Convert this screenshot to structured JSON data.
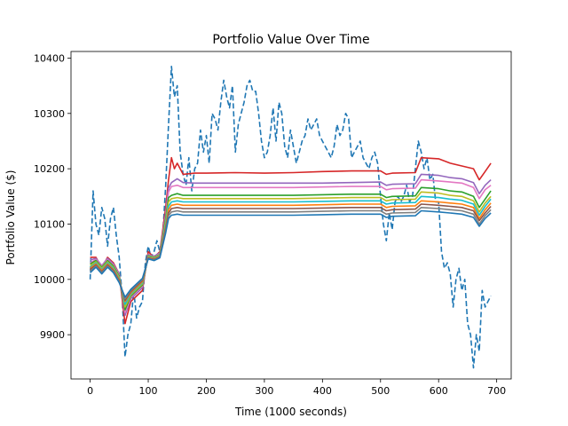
{
  "chart_data": {
    "type": "line",
    "title": "Portfolio Value Over Time",
    "xlabel": "Time (1000 seconds)",
    "ylabel": "Portfolio Value ($)",
    "xlim": [
      -33,
      725
    ],
    "ylim": [
      9820,
      10412
    ],
    "xticks": [
      0,
      100,
      200,
      300,
      400,
      500,
      600,
      700
    ],
    "yticks": [
      9900,
      10000,
      10100,
      10200,
      10300,
      10400
    ],
    "grid": false,
    "legend": "none",
    "series": [
      {
        "color": "#1f77b4",
        "dashed": true,
        "x": [
          0,
          5,
          10,
          15,
          20,
          25,
          30,
          35,
          40,
          45,
          50,
          55,
          60,
          65,
          70,
          75,
          80,
          85,
          90,
          95,
          100,
          105,
          110,
          115,
          120,
          125,
          130,
          135,
          140,
          145,
          150,
          155,
          160,
          165,
          170,
          175,
          180,
          185,
          190,
          195,
          200,
          205,
          210,
          215,
          220,
          225,
          230,
          235,
          240,
          245,
          250,
          255,
          260,
          265,
          270,
          275,
          280,
          285,
          290,
          295,
          300,
          305,
          310,
          315,
          320,
          325,
          330,
          335,
          340,
          345,
          350,
          355,
          360,
          365,
          370,
          375,
          380,
          385,
          390,
          395,
          400,
          405,
          410,
          415,
          420,
          425,
          430,
          435,
          440,
          445,
          450,
          455,
          460,
          465,
          470,
          475,
          480,
          485,
          490,
          495,
          500,
          505,
          510,
          515,
          520,
          525,
          530,
          535,
          540,
          545,
          550,
          555,
          560,
          565,
          570,
          575,
          580,
          585,
          590,
          595,
          600,
          605,
          610,
          615,
          620,
          625,
          630,
          635,
          640,
          645,
          650,
          655,
          660,
          665,
          670,
          675,
          680,
          685,
          690
        ],
        "values": [
          10000,
          10160,
          10100,
          10080,
          10130,
          10110,
          10060,
          10110,
          10130,
          10080,
          10040,
          9970,
          9860,
          9900,
          9920,
          9980,
          9930,
          9950,
          9960,
          10030,
          10060,
          10040,
          10050,
          10070,
          10050,
          10080,
          10170,
          10280,
          10385,
          10330,
          10350,
          10230,
          10190,
          10170,
          10220,
          10160,
          10200,
          10210,
          10270,
          10230,
          10260,
          10210,
          10300,
          10290,
          10270,
          10320,
          10360,
          10330,
          10310,
          10350,
          10230,
          10280,
          10300,
          10320,
          10350,
          10360,
          10340,
          10340,
          10300,
          10250,
          10220,
          10230,
          10260,
          10310,
          10250,
          10320,
          10300,
          10240,
          10220,
          10270,
          10240,
          10210,
          10230,
          10250,
          10260,
          10290,
          10270,
          10280,
          10290,
          10260,
          10250,
          10240,
          10230,
          10220,
          10240,
          10280,
          10260,
          10270,
          10300,
          10290,
          10220,
          10230,
          10240,
          10250,
          10220,
          10210,
          10200,
          10220,
          10230,
          10210,
          10150,
          10100,
          10070,
          10120,
          10090,
          10140,
          10150,
          10140,
          10150,
          10170,
          10140,
          10150,
          10200,
          10250,
          10230,
          10200,
          10220,
          10180,
          10190,
          10140,
          10140,
          10050,
          10020,
          10030,
          10010,
          9950,
          10000,
          10020,
          9980,
          10000,
          9920,
          9900,
          9840,
          9900,
          9870,
          9980,
          9950,
          9960,
          9970
        ]
      },
      {
        "color": "#d62728",
        "x": [
          0,
          10,
          20,
          30,
          40,
          50,
          60,
          70,
          80,
          90,
          100,
          110,
          120,
          130,
          135,
          140,
          145,
          150,
          160,
          180,
          200,
          250,
          300,
          350,
          400,
          450,
          500,
          510,
          520,
          560,
          570,
          600,
          620,
          640,
          660,
          670,
          680,
          690
        ],
        "values": [
          10040,
          10040,
          10020,
          10040,
          10030,
          10010,
          9920,
          9960,
          9970,
          9980,
          10050,
          10040,
          10050,
          10130,
          10180,
          10220,
          10200,
          10210,
          10190,
          10192,
          10192,
          10193,
          10192,
          10193,
          10195,
          10196,
          10196,
          10190,
          10192,
          10193,
          10220,
          10218,
          10210,
          10205,
          10200,
          10180,
          10195,
          10210
        ]
      },
      {
        "color": "#9467bd",
        "x": [
          0,
          10,
          20,
          30,
          40,
          50,
          60,
          70,
          80,
          90,
          100,
          110,
          120,
          130,
          135,
          140,
          150,
          160,
          180,
          200,
          250,
          300,
          350,
          400,
          450,
          500,
          510,
          520,
          560,
          570,
          600,
          620,
          640,
          660,
          670,
          680,
          690
        ],
        "values": [
          10035,
          10038,
          10025,
          10038,
          10028,
          10010,
          9935,
          9965,
          9975,
          9985,
          10045,
          10042,
          10048,
          10120,
          10165,
          10175,
          10182,
          10175,
          10174,
          10174,
          10174,
          10174,
          10174,
          10174,
          10175,
          10176,
          10170,
          10172,
          10173,
          10190,
          10188,
          10184,
          10182,
          10175,
          10155,
          10170,
          10180
        ]
      },
      {
        "color": "#e377c2",
        "x": [
          0,
          10,
          20,
          30,
          40,
          50,
          60,
          70,
          80,
          90,
          100,
          110,
          120,
          130,
          135,
          140,
          150,
          160,
          180,
          200,
          250,
          300,
          350,
          400,
          450,
          500,
          510,
          520,
          560,
          570,
          600,
          620,
          640,
          660,
          670,
          680,
          690
        ],
        "values": [
          10030,
          10036,
          10024,
          10036,
          10026,
          10008,
          9940,
          9968,
          9978,
          9988,
          10044,
          10041,
          10046,
          10115,
          10158,
          10168,
          10170,
          10166,
          10166,
          10166,
          10166,
          10166,
          10166,
          10167,
          10168,
          10168,
          10162,
          10164,
          10165,
          10180,
          10178,
          10176,
          10174,
          10166,
          10146,
          10162,
          10170
        ]
      },
      {
        "color": "#2ca02c",
        "x": [
          0,
          10,
          20,
          30,
          40,
          50,
          60,
          70,
          80,
          90,
          100,
          110,
          120,
          130,
          135,
          140,
          150,
          160,
          180,
          200,
          250,
          300,
          350,
          400,
          450,
          500,
          510,
          520,
          560,
          570,
          600,
          620,
          640,
          660,
          670,
          680,
          690
        ],
        "values": [
          10028,
          10034,
          10022,
          10034,
          10024,
          10006,
          9945,
          9970,
          9980,
          9990,
          10043,
          10040,
          10045,
          10110,
          10148,
          10152,
          10155,
          10152,
          10152,
          10152,
          10152,
          10152,
          10152,
          10153,
          10154,
          10154,
          10148,
          10150,
          10151,
          10166,
          10164,
          10160,
          10158,
          10150,
          10130,
          10145,
          10160
        ]
      },
      {
        "color": "#bcbd22",
        "x": [
          0,
          10,
          20,
          30,
          40,
          50,
          60,
          70,
          80,
          90,
          100,
          110,
          120,
          130,
          135,
          140,
          150,
          160,
          180,
          200,
          250,
          300,
          350,
          400,
          450,
          500,
          510,
          520,
          560,
          570,
          600,
          620,
          640,
          660,
          670,
          680,
          690
        ],
        "values": [
          10025,
          10032,
          10020,
          10032,
          10022,
          10004,
          9950,
          9972,
          9982,
          9992,
          10042,
          10039,
          10044,
          10105,
          10140,
          10146,
          10148,
          10146,
          10146,
          10146,
          10146,
          10146,
          10146,
          10147,
          10148,
          10148,
          10142,
          10144,
          10145,
          10158,
          10156,
          10152,
          10150,
          10142,
          10122,
          10138,
          10150
        ]
      },
      {
        "color": "#17becf",
        "x": [
          0,
          10,
          20,
          30,
          40,
          50,
          60,
          70,
          80,
          90,
          100,
          110,
          120,
          130,
          135,
          140,
          150,
          160,
          180,
          200,
          250,
          300,
          350,
          400,
          450,
          500,
          510,
          520,
          560,
          570,
          600,
          620,
          640,
          660,
          670,
          680,
          690
        ],
        "values": [
          10022,
          10030,
          10018,
          10030,
          10020,
          10002,
          9955,
          9974,
          9984,
          9994,
          10041,
          10038,
          10043,
          10100,
          10132,
          10140,
          10142,
          10140,
          10140,
          10140,
          10140,
          10140,
          10140,
          10141,
          10142,
          10142,
          10136,
          10138,
          10139,
          10150,
          10148,
          10145,
          10143,
          10136,
          10116,
          10132,
          10145
        ]
      },
      {
        "color": "#ff7f0e",
        "x": [
          0,
          10,
          20,
          30,
          40,
          50,
          60,
          70,
          80,
          90,
          100,
          110,
          120,
          130,
          135,
          140,
          150,
          160,
          180,
          200,
          250,
          300,
          350,
          400,
          450,
          500,
          510,
          520,
          560,
          570,
          600,
          620,
          640,
          660,
          670,
          680,
          690
        ],
        "values": [
          10020,
          10028,
          10016,
          10028,
          10018,
          10000,
          9960,
          9976,
          9986,
          9996,
          10040,
          10037,
          10042,
          10095,
          10126,
          10134,
          10136,
          10134,
          10134,
          10134,
          10134,
          10134,
          10134,
          10135,
          10136,
          10136,
          10130,
          10132,
          10133,
          10142,
          10140,
          10138,
          10136,
          10130,
          10110,
          10126,
          10138
        ]
      },
      {
        "color": "#8c564b",
        "x": [
          0,
          10,
          20,
          30,
          40,
          50,
          60,
          70,
          80,
          90,
          100,
          110,
          120,
          130,
          135,
          140,
          150,
          160,
          180,
          200,
          250,
          300,
          350,
          400,
          450,
          500,
          510,
          520,
          560,
          570,
          600,
          620,
          640,
          660,
          670,
          680,
          690
        ],
        "values": [
          10018,
          10026,
          10014,
          10026,
          10016,
          9998,
          9962,
          9978,
          9988,
          9998,
          10039,
          10036,
          10041,
          10092,
          10120,
          10128,
          10130,
          10128,
          10128,
          10128,
          10128,
          10128,
          10128,
          10129,
          10130,
          10130,
          10124,
          10126,
          10127,
          10136,
          10134,
          10132,
          10130,
          10124,
          10106,
          10120,
          10132
        ]
      },
      {
        "color": "#7f7f7f",
        "x": [
          0,
          10,
          20,
          30,
          40,
          50,
          60,
          70,
          80,
          90,
          100,
          110,
          120,
          130,
          135,
          140,
          150,
          160,
          180,
          200,
          250,
          300,
          350,
          400,
          450,
          500,
          510,
          520,
          560,
          570,
          600,
          620,
          640,
          660,
          670,
          680,
          690
        ],
        "values": [
          10015,
          10024,
          10012,
          10024,
          10014,
          9996,
          9965,
          9980,
          9990,
          10000,
          10038,
          10035,
          10040,
          10088,
          10115,
          10122,
          10124,
          10122,
          10122,
          10122,
          10122,
          10122,
          10122,
          10123,
          10124,
          10124,
          10118,
          10120,
          10121,
          10130,
          10128,
          10126,
          10124,
          10118,
          10100,
          10115,
          10126
        ]
      },
      {
        "color": "#1f77b4",
        "x": [
          0,
          10,
          20,
          30,
          40,
          50,
          60,
          70,
          80,
          90,
          100,
          110,
          120,
          130,
          135,
          140,
          150,
          160,
          180,
          200,
          250,
          300,
          350,
          400,
          450,
          500,
          510,
          520,
          560,
          570,
          600,
          620,
          640,
          660,
          670,
          680,
          690
        ],
        "values": [
          10012,
          10022,
          10010,
          10022,
          10012,
          9994,
          9968,
          9982,
          9992,
          10002,
          10037,
          10034,
          10039,
          10084,
          10110,
          10116,
          10118,
          10116,
          10116,
          10116,
          10116,
          10116,
          10116,
          10117,
          10118,
          10118,
          10112,
          10114,
          10115,
          10124,
          10122,
          10120,
          10118,
          10112,
          10096,
          10110,
          10120
        ]
      }
    ]
  }
}
